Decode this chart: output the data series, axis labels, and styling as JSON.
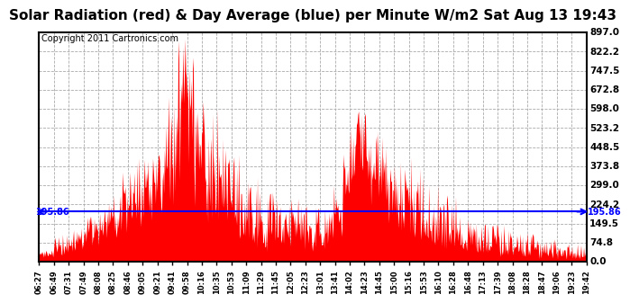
{
  "title": "Solar Radiation (red) & Day Average (blue) per Minute W/m2 Sat Aug 13 19:43",
  "copyright": "Copyright 2011 Cartronics.com",
  "y_ticks": [
    0.0,
    74.8,
    149.5,
    224.2,
    299.0,
    373.8,
    448.5,
    523.2,
    598.0,
    672.8,
    747.5,
    822.2,
    897.0
  ],
  "y_min": 0.0,
  "y_max": 897.0,
  "day_average": 195.86,
  "day_avg_label": "195.86",
  "x_tick_labels": [
    "06:27",
    "06:49",
    "07:31",
    "07:49",
    "08:08",
    "08:25",
    "08:46",
    "09:05",
    "09:21",
    "09:41",
    "09:58",
    "10:16",
    "10:35",
    "10:53",
    "11:09",
    "11:29",
    "11:45",
    "12:05",
    "12:23",
    "13:01",
    "13:41",
    "14:02",
    "14:23",
    "14:45",
    "15:00",
    "15:16",
    "15:53",
    "16:10",
    "16:28",
    "16:48",
    "17:13",
    "17:39",
    "18:08",
    "18:28",
    "18:47",
    "19:06",
    "19:23",
    "19:42"
  ],
  "background_color": "#ffffff",
  "plot_bg_color": "#ffffff",
  "area_color": "#ff0000",
  "avg_line_color": "#0000ff",
  "title_fontsize": 11,
  "copyright_fontsize": 7,
  "grid_color": "#aaaaaa",
  "x_label_fontsize": 6,
  "y_label_fontsize": 7.5
}
